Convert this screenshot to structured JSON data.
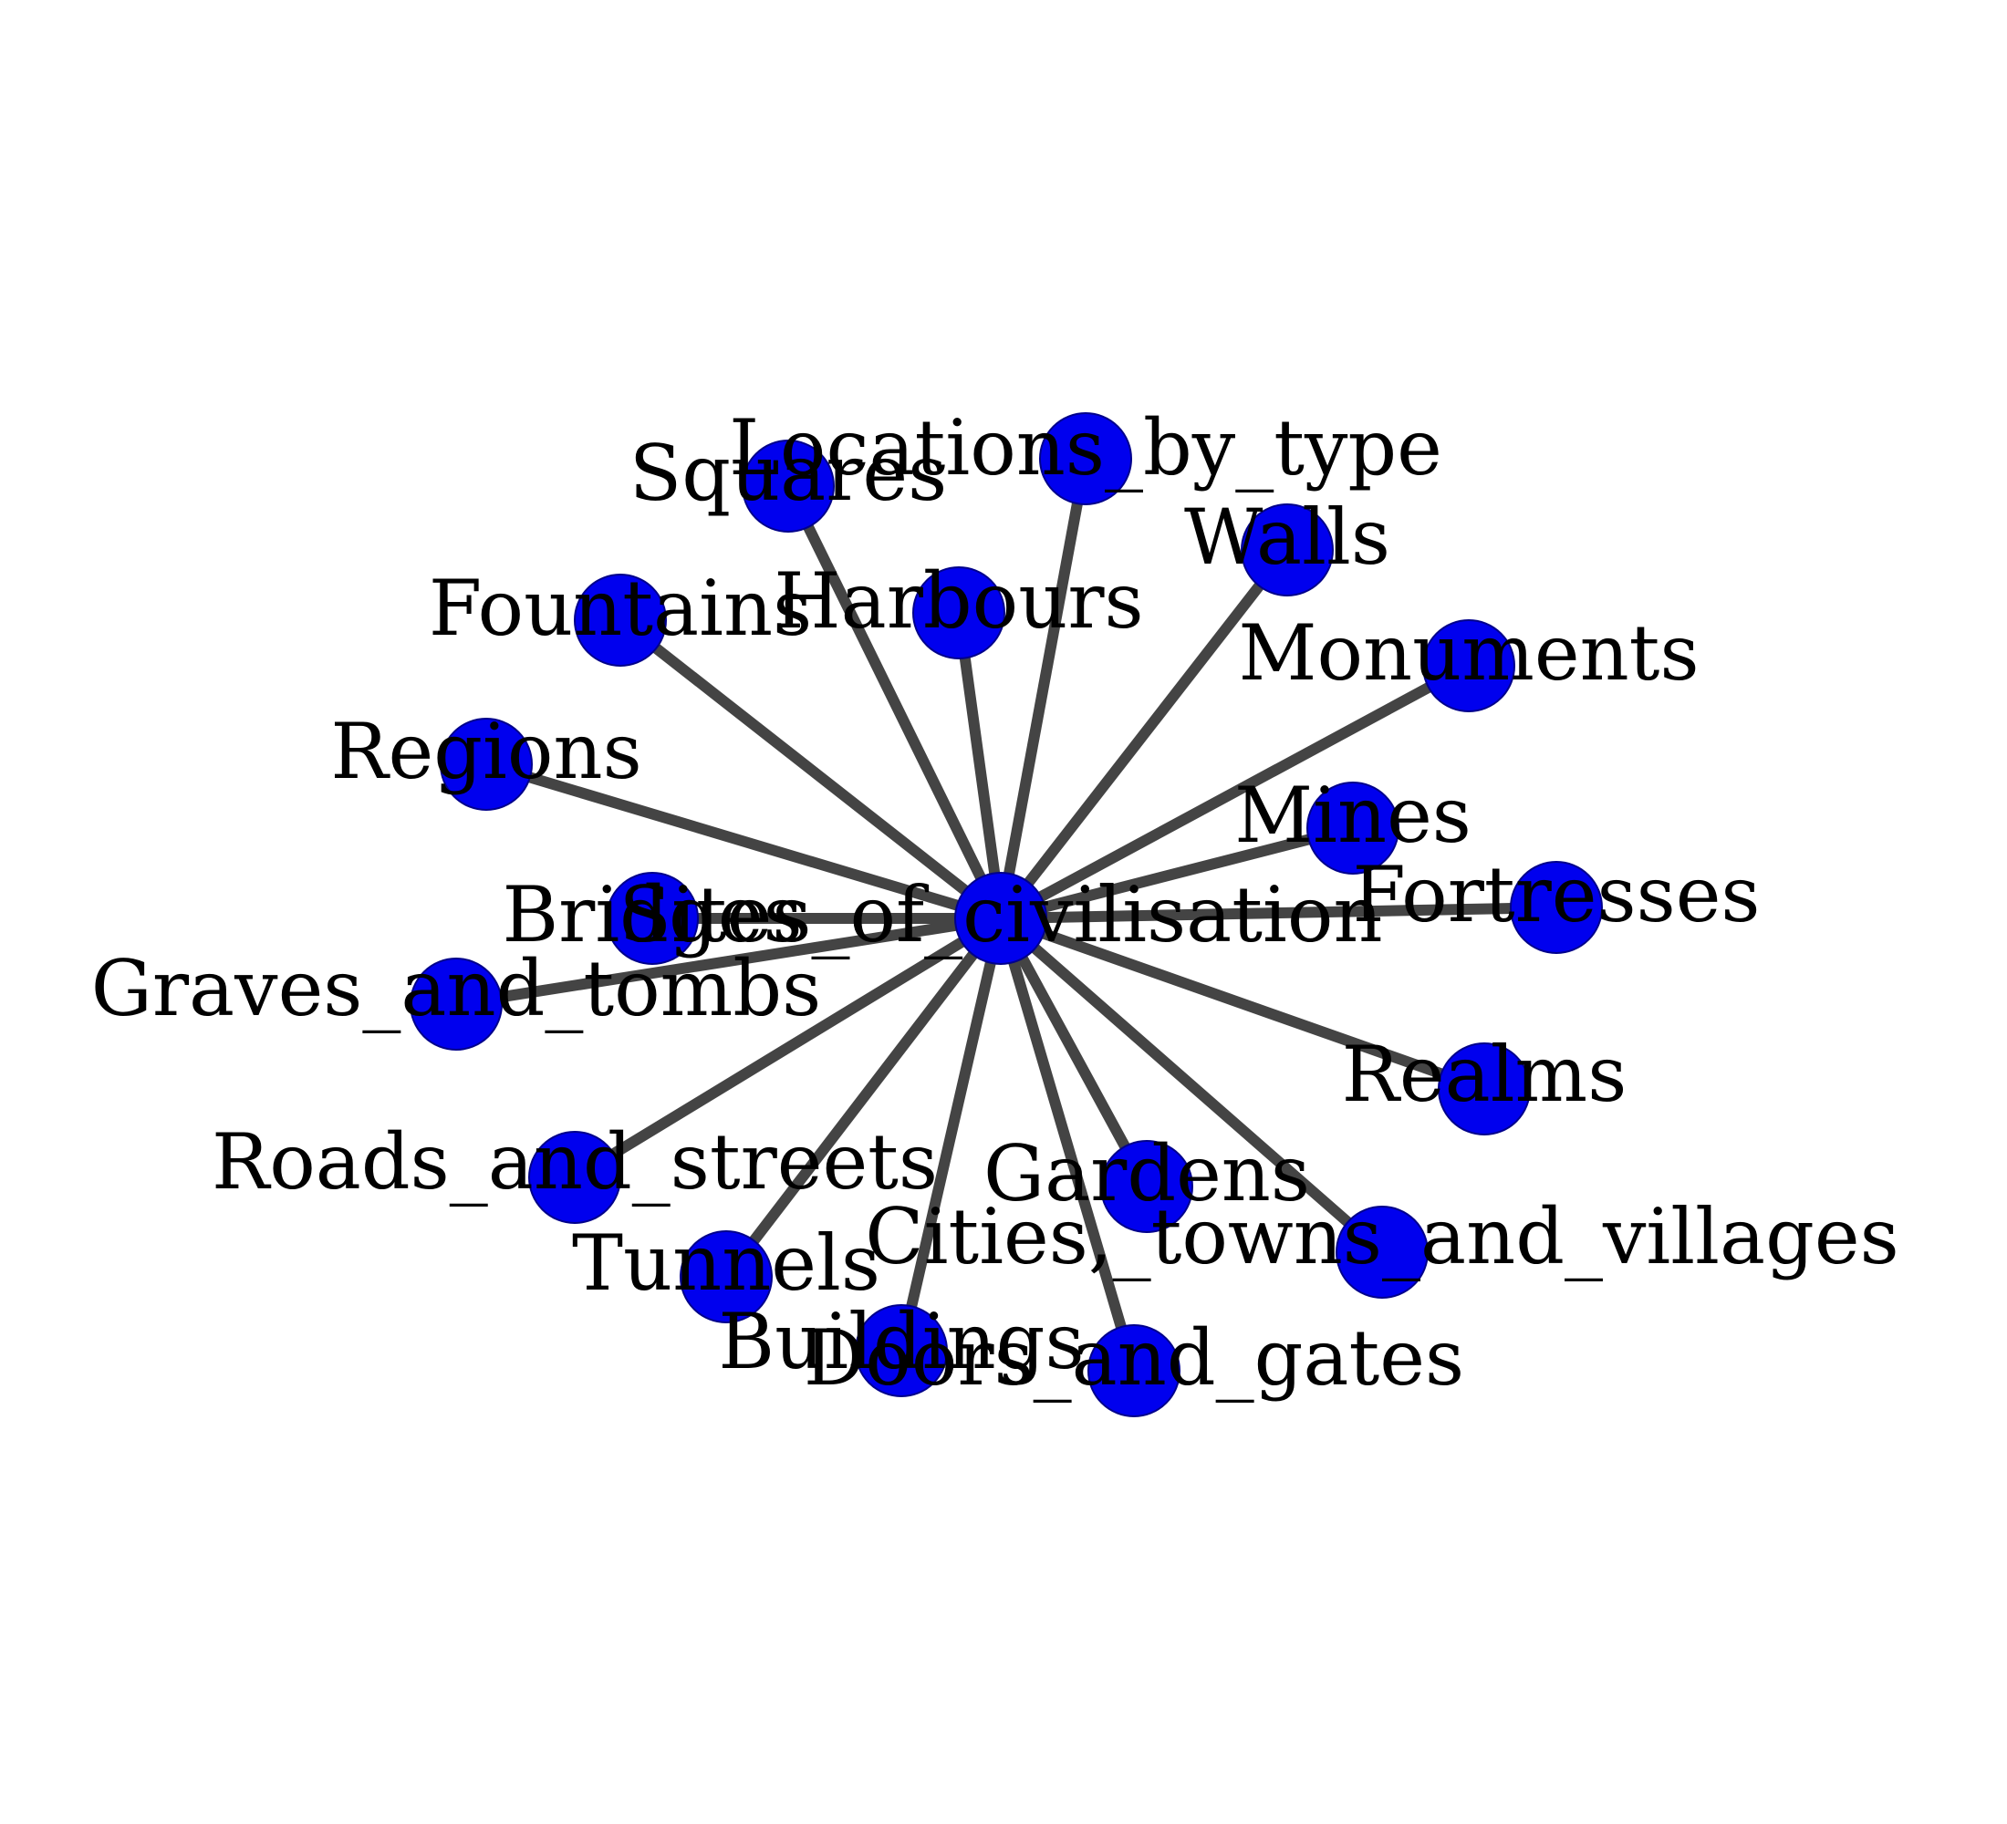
{
  "graph": {
    "center": {
      "id": "sites",
      "label": "Sites_of_civilisation"
    },
    "nodes": [
      {
        "id": "locations",
        "label": "Locations_by_type"
      },
      {
        "id": "squares",
        "label": "Squares"
      },
      {
        "id": "walls",
        "label": "Walls"
      },
      {
        "id": "harbours",
        "label": "Harbours"
      },
      {
        "id": "fountains",
        "label": "Fountains"
      },
      {
        "id": "monuments",
        "label": "Monuments"
      },
      {
        "id": "regions",
        "label": "Regions"
      },
      {
        "id": "mines",
        "label": "Mines"
      },
      {
        "id": "fortresses",
        "label": "Fortresses"
      },
      {
        "id": "bridges",
        "label": "Bridges"
      },
      {
        "id": "graves",
        "label": "Graves_and_tombs"
      },
      {
        "id": "realms",
        "label": "Realms"
      },
      {
        "id": "roads",
        "label": "Roads_and_streets"
      },
      {
        "id": "gardens",
        "label": "Gardens"
      },
      {
        "id": "cities",
        "label": "Cities,_towns_and_villages"
      },
      {
        "id": "tunnels",
        "label": "Tunnels"
      },
      {
        "id": "buildings",
        "label": "Buildings"
      },
      {
        "id": "doors",
        "label": "Doors_and_gates"
      }
    ]
  },
  "colors": {
    "node_fill": "#0000ee",
    "node_stroke": "#00008b",
    "edge": "#444444",
    "label": "#000000"
  }
}
